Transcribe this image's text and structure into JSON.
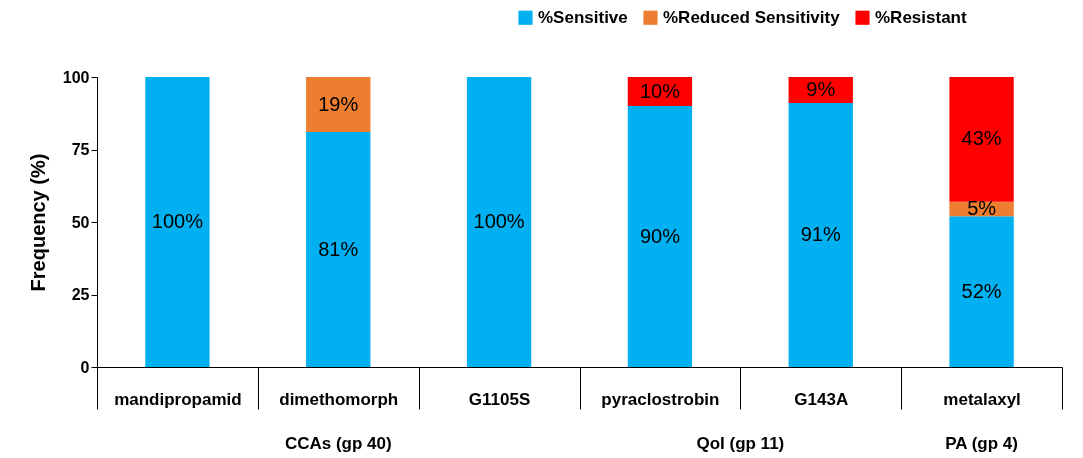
{
  "chart_data": {
    "type": "bar",
    "stacked": true,
    "ylabel": "Frequency (%)",
    "categories": [
      "mandipropamid",
      "dimethomorph",
      "G1105S",
      "pyraclostrobin",
      "G143A",
      "metalaxyl"
    ],
    "series": [
      {
        "name": "%Sensitive",
        "color": "#00b0f0",
        "values": [
          100,
          81,
          100,
          90,
          91,
          52
        ],
        "value_labels": [
          "100%",
          "81%",
          "100%",
          "90%",
          "91%",
          "52%"
        ]
      },
      {
        "name": "%Reduced Sensitivity",
        "color": "#ed7d31",
        "values": [
          null,
          19,
          null,
          null,
          null,
          5
        ],
        "value_labels": [
          null,
          "19%",
          null,
          null,
          null,
          "5%"
        ]
      },
      {
        "name": "%Resistant",
        "color": "#ff0000",
        "values": [
          null,
          null,
          null,
          10,
          9,
          43
        ],
        "value_labels": [
          null,
          null,
          null,
          "10%",
          "9%",
          "43%"
        ]
      }
    ],
    "ylim": [
      0,
      100
    ],
    "yticks": [
      0,
      25,
      50,
      75,
      100
    ],
    "grid": false,
    "legend": "top right",
    "annotations": [
      "CCAs (gp 40)",
      "QoI (gp 11)",
      "PA (gp 4)"
    ]
  }
}
